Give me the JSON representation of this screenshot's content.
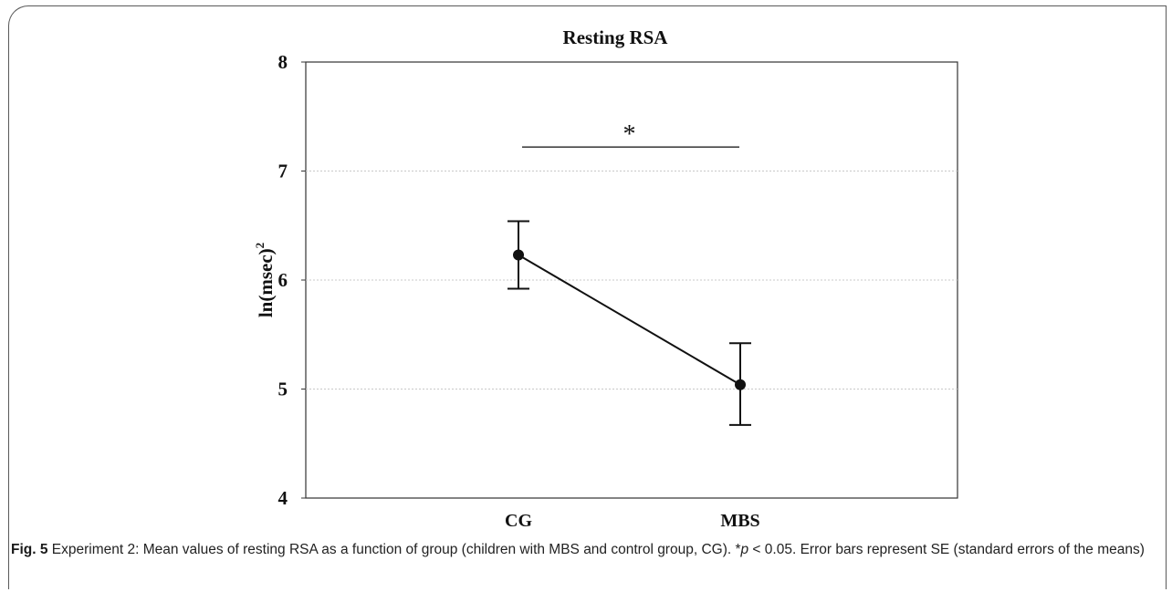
{
  "chart_data": {
    "type": "line",
    "title": "Resting RSA",
    "ylabel": "ln(msec)",
    "ylabel_superscript": "2",
    "xlabel": "",
    "categories": [
      "CG",
      "MBS"
    ],
    "series": [
      {
        "values": [
          6.23,
          5.04
        ],
        "error_low": [
          5.92,
          4.67
        ],
        "error_high": [
          6.54,
          5.42
        ]
      }
    ],
    "ylim": [
      4,
      8
    ],
    "yticks": [
      "4",
      "5",
      "6",
      "7",
      "8"
    ],
    "grid": true,
    "annotations": [
      {
        "text": "*",
        "from": "CG",
        "to": "MBS",
        "y": 7.22
      }
    ]
  },
  "caption": {
    "label": "Fig. 5",
    "text_before_p": " Experiment 2: Mean values of resting RSA as a function of group (children with MBS and control group, CG). *",
    "p": "p",
    "text_after_p": " < 0.05. Error bars represent SE (standard errors of the means)"
  },
  "colors": {
    "line": "#111111",
    "grid": "#c8c8c8",
    "frame": "#5a5a5a",
    "caption_text": "#222222"
  }
}
